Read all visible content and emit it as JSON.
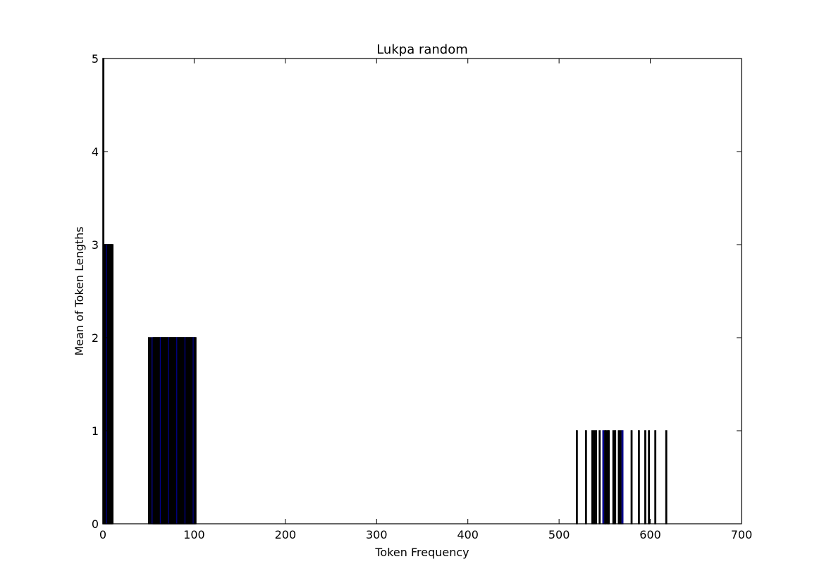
{
  "chart_data": {
    "type": "bar",
    "title": "Lukpa random",
    "xlabel": "Token Frequency",
    "ylabel": "Mean of Token Lengths",
    "xlim": [
      0,
      700
    ],
    "ylim": [
      0,
      5
    ],
    "xticks": [
      "0",
      "100",
      "200",
      "300",
      "400",
      "500",
      "600",
      "700"
    ],
    "yticks": [
      "0",
      "1",
      "2",
      "3",
      "4",
      "5"
    ],
    "grid": false,
    "bar_color": "#000000",
    "edge_color": "#000000",
    "accent_edge_color": "#00008b",
    "series": [
      {
        "points": [
          {
            "x": 1,
            "y": 5
          },
          {
            "x": 2,
            "y": 3
          },
          {
            "x": 3,
            "y": 3
          },
          {
            "x": 4,
            "y": 3
          },
          {
            "x": 5,
            "y": 3
          },
          {
            "x": 6,
            "y": 3
          },
          {
            "x": 7,
            "y": 3
          },
          {
            "x": 8,
            "y": 3
          },
          {
            "x": 9,
            "y": 3
          },
          {
            "x": 10,
            "y": 3
          },
          {
            "x": 11,
            "y": 3
          },
          {
            "x": 51,
            "y": 2
          },
          {
            "x": 53,
            "y": 2
          },
          {
            "x": 55,
            "y": 2
          },
          {
            "x": 56,
            "y": 2
          },
          {
            "x": 57,
            "y": 2
          },
          {
            "x": 58,
            "y": 2
          },
          {
            "x": 59,
            "y": 2
          },
          {
            "x": 60,
            "y": 2
          },
          {
            "x": 61,
            "y": 2
          },
          {
            "x": 62,
            "y": 2
          },
          {
            "x": 63,
            "y": 2
          },
          {
            "x": 64,
            "y": 2
          },
          {
            "x": 65,
            "y": 2
          },
          {
            "x": 66,
            "y": 2
          },
          {
            "x": 67,
            "y": 2
          },
          {
            "x": 68,
            "y": 2
          },
          {
            "x": 69,
            "y": 2
          },
          {
            "x": 70,
            "y": 2
          },
          {
            "x": 71,
            "y": 2
          },
          {
            "x": 72,
            "y": 2
          },
          {
            "x": 73,
            "y": 2
          },
          {
            "x": 74,
            "y": 2
          },
          {
            "x": 75,
            "y": 2
          },
          {
            "x": 76,
            "y": 2
          },
          {
            "x": 77,
            "y": 2
          },
          {
            "x": 78,
            "y": 2
          },
          {
            "x": 79,
            "y": 2
          },
          {
            "x": 80,
            "y": 2
          },
          {
            "x": 81,
            "y": 2
          },
          {
            "x": 82,
            "y": 2
          },
          {
            "x": 83,
            "y": 2
          },
          {
            "x": 84,
            "y": 2
          },
          {
            "x": 85,
            "y": 2
          },
          {
            "x": 86,
            "y": 2
          },
          {
            "x": 87,
            "y": 2
          },
          {
            "x": 88,
            "y": 2
          },
          {
            "x": 89,
            "y": 2
          },
          {
            "x": 90,
            "y": 2
          },
          {
            "x": 91,
            "y": 2
          },
          {
            "x": 92,
            "y": 2
          },
          {
            "x": 93,
            "y": 2
          },
          {
            "x": 94,
            "y": 2
          },
          {
            "x": 95,
            "y": 2
          },
          {
            "x": 96,
            "y": 2
          },
          {
            "x": 97,
            "y": 2
          },
          {
            "x": 98,
            "y": 2
          },
          {
            "x": 99,
            "y": 2
          },
          {
            "x": 100,
            "y": 2
          },
          {
            "x": 101,
            "y": 2
          },
          {
            "x": 102,
            "y": 2
          },
          {
            "x": 520,
            "y": 1
          },
          {
            "x": 530,
            "y": 1
          },
          {
            "x": 537,
            "y": 1
          },
          {
            "x": 539,
            "y": 1
          },
          {
            "x": 541,
            "y": 1
          },
          {
            "x": 545,
            "y": 1
          },
          {
            "x": 549,
            "y": 1
          },
          {
            "x": 551,
            "y": 1
          },
          {
            "x": 552,
            "y": 1
          },
          {
            "x": 554,
            "y": 1
          },
          {
            "x": 555,
            "y": 1
          },
          {
            "x": 560,
            "y": 1
          },
          {
            "x": 562,
            "y": 1
          },
          {
            "x": 566,
            "y": 1
          },
          {
            "x": 568,
            "y": 1
          },
          {
            "x": 570,
            "y": 1
          },
          {
            "x": 580,
            "y": 1
          },
          {
            "x": 588,
            "y": 1
          },
          {
            "x": 595,
            "y": 1
          },
          {
            "x": 599,
            "y": 1
          },
          {
            "x": 606,
            "y": 1
          },
          {
            "x": 618,
            "y": 1
          }
        ]
      }
    ]
  }
}
